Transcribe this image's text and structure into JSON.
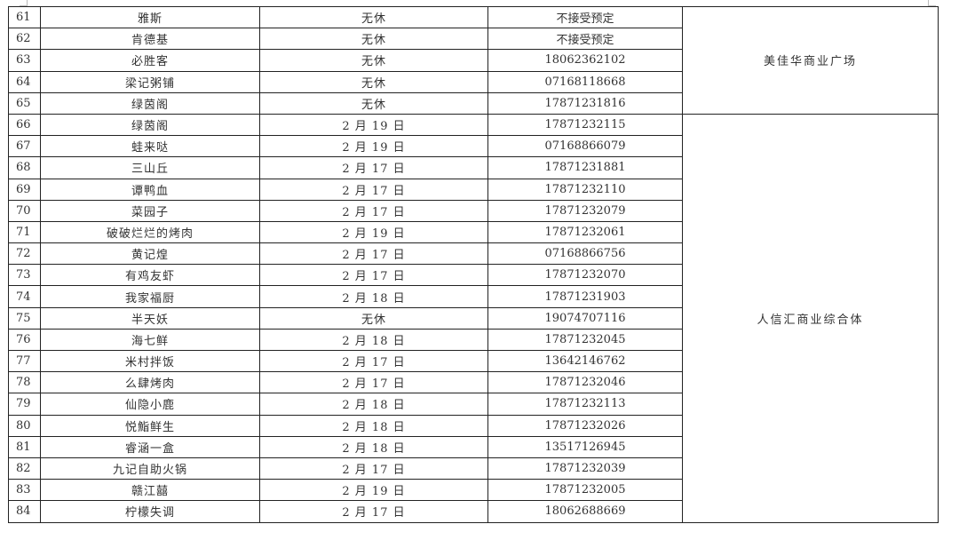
{
  "rows": [
    {
      "no": "61",
      "name": "雅斯",
      "closed": "无休",
      "phone": "不接受预定"
    },
    {
      "no": "62",
      "name": "肯德基",
      "closed": "无休",
      "phone": "不接受预定"
    },
    {
      "no": "63",
      "name": "必胜客",
      "closed": "无休",
      "phone": "18062362102"
    },
    {
      "no": "64",
      "name": "梁记粥铺",
      "closed": "无休",
      "phone": "07168118668"
    },
    {
      "no": "65",
      "name": "绿茵阁",
      "closed": "无休",
      "phone": "17871231816"
    },
    {
      "no": "66",
      "name": "绿茵阁",
      "closed": "2 月 19 日",
      "phone": "17871232115"
    },
    {
      "no": "67",
      "name": "蛙来哒",
      "closed": "2 月 19 日",
      "phone": "07168866079"
    },
    {
      "no": "68",
      "name": "三山丘",
      "closed": "2 月 17 日",
      "phone": "17871231881"
    },
    {
      "no": "69",
      "name": "谭鸭血",
      "closed": "2 月 17 日",
      "phone": "17871232110"
    },
    {
      "no": "70",
      "name": "菜园子",
      "closed": "2 月 17 日",
      "phone": "17871232079"
    },
    {
      "no": "71",
      "name": "破破烂烂的烤肉",
      "closed": "2 月 19 日",
      "phone": "17871232061"
    },
    {
      "no": "72",
      "name": "黄记煌",
      "closed": "2 月 17 日",
      "phone": "07168866756"
    },
    {
      "no": "73",
      "name": "有鸡友虾",
      "closed": "2 月 17 日",
      "phone": "17871232070"
    },
    {
      "no": "74",
      "name": "我家福厨",
      "closed": "2 月 18 日",
      "phone": "17871231903"
    },
    {
      "no": "75",
      "name": "半天妖",
      "closed": "无休",
      "phone": "19074707116"
    },
    {
      "no": "76",
      "name": "海七鲜",
      "closed": "2 月 18 日",
      "phone": "17871232045"
    },
    {
      "no": "77",
      "name": "米村拌饭",
      "closed": "2 月 17 日",
      "phone": "13642146762"
    },
    {
      "no": "78",
      "name": "么肆烤肉",
      "closed": "2 月 17 日",
      "phone": "17871232046"
    },
    {
      "no": "79",
      "name": "仙隐小鹿",
      "closed": "2 月 18 日",
      "phone": "17871232113"
    },
    {
      "no": "80",
      "name": "悦鮨鲜生",
      "closed": "2 月 18 日",
      "phone": "17871232026"
    },
    {
      "no": "81",
      "name": "睿涵一盒",
      "closed": "2 月 18 日",
      "phone": "13517126945"
    },
    {
      "no": "82",
      "name": "九记自助火锅",
      "closed": "2 月 17 日",
      "phone": "17871232039"
    },
    {
      "no": "83",
      "name": "赣江囍",
      "closed": "2 月 19 日",
      "phone": "17871232005"
    },
    {
      "no": "84",
      "name": "柠檬失调",
      "closed": "2 月 17 日",
      "phone": "18062688669"
    }
  ],
  "locations": [
    {
      "label": "美佳华商业广场",
      "span": 5
    },
    {
      "label": "人信汇商业综合体",
      "span": 19
    }
  ]
}
